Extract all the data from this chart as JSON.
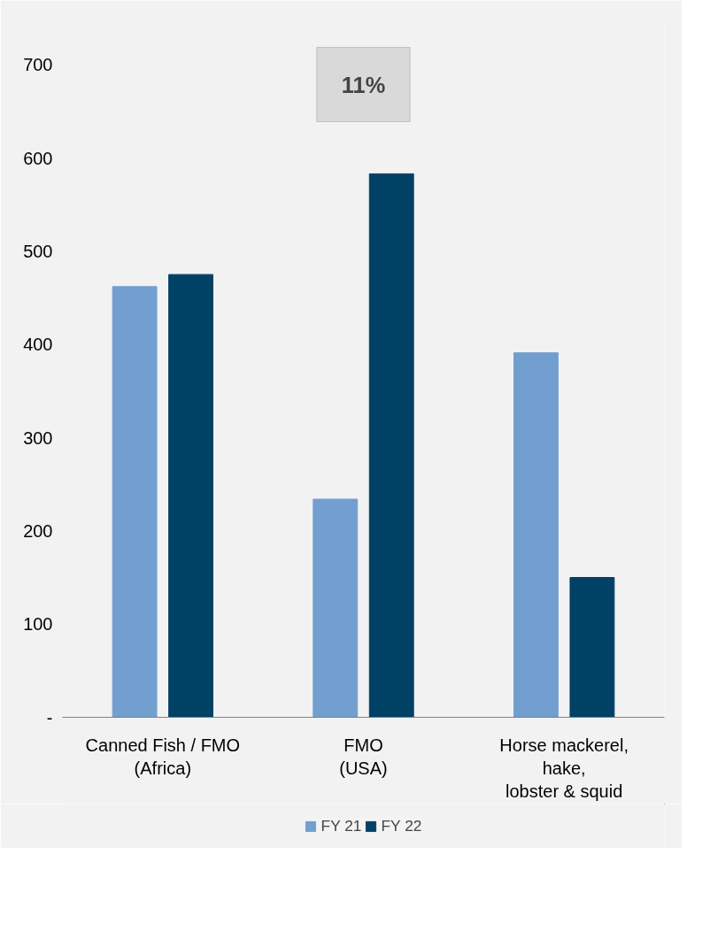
{
  "chart_data": {
    "type": "bar",
    "categories": [
      "Canned Fish / FMO\n(Africa)",
      "FMO\n(USA)",
      "Horse mackerel,\nhake,\nlobster & squid"
    ],
    "series": [
      {
        "name": "FY 21",
        "color": "#729fcf",
        "values": [
          462,
          234,
          391
        ]
      },
      {
        "name": "FY 22",
        "color": "#004165",
        "values": [
          475,
          583,
          150
        ]
      }
    ],
    "ylim": [
      0,
      750
    ],
    "yticks": [
      {
        "value": 0,
        "label": "-"
      },
      100,
      200,
      300,
      400,
      500,
      600,
      700
    ],
    "annotations": [
      "11%"
    ],
    "grid": false,
    "legend": "bottom"
  }
}
